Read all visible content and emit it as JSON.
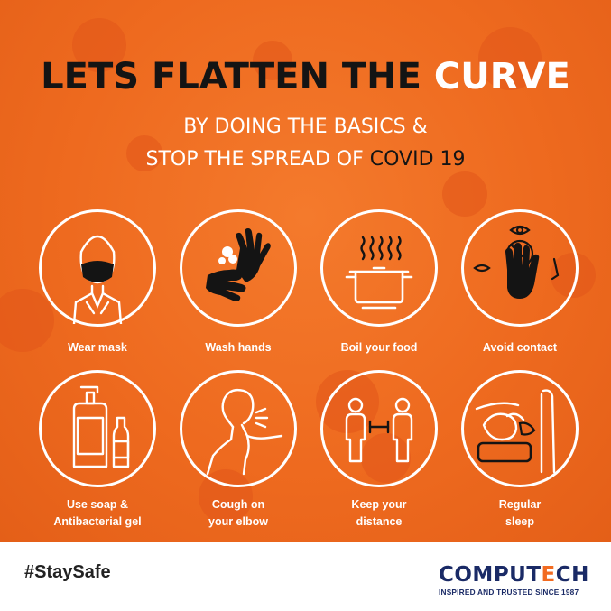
{
  "headline": {
    "part1": "LETS FLATTEN THE ",
    "highlight": "CURVE"
  },
  "subheadline": {
    "line1": "BY DOING THE BASICS &",
    "line2_part1": "STOP THE SPREAD OF ",
    "line2_highlight": "COVID 19"
  },
  "tips": [
    {
      "label": "Wear mask",
      "icon": "face-mask-icon"
    },
    {
      "label": "Wash hands",
      "icon": "hand-wash-icon"
    },
    {
      "label": "Boil your food",
      "icon": "boiling-pot-icon"
    },
    {
      "label": "Avoid contact",
      "icon": "no-touch-face-icon"
    },
    {
      "label": "Use soap &",
      "label2": "Antibacterial gel",
      "icon": "soap-bottle-icon"
    },
    {
      "label": "Cough on",
      "label2": "your elbow",
      "icon": "cough-elbow-icon"
    },
    {
      "label": "Keep your",
      "label2": "distance",
      "icon": "social-distance-icon"
    },
    {
      "label": "Regular",
      "label2": "sleep",
      "icon": "sleeping-person-icon"
    }
  ],
  "footer": {
    "hashtag": "#StaySafe"
  },
  "logo": {
    "word_start": "COMPUT",
    "word_mark": "E",
    "word_end": "CH",
    "tagline": "INSPIRED AND TRUSTED SINCE 1987"
  },
  "colors": {
    "background": "#ee6a1f",
    "headline": "#141414",
    "highlight": "#ffffff",
    "logo_navy": "#1a2a66",
    "logo_orange": "#f26b21"
  }
}
